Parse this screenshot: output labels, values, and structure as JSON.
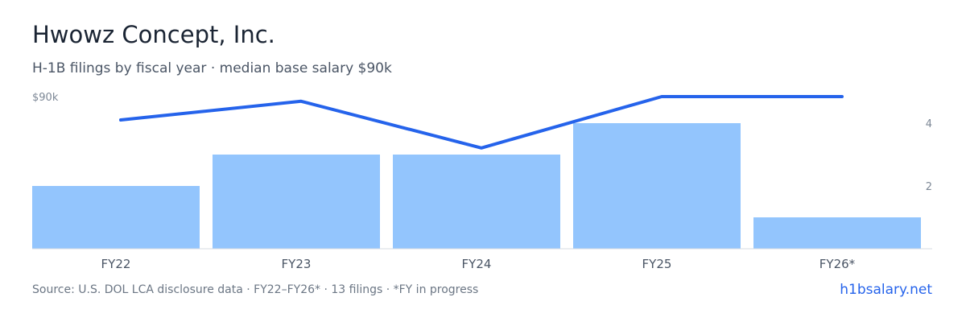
{
  "header": {
    "title": "Hwowz Concept, Inc.",
    "subtitle": "H-1B filings by fiscal year · median base salary $90k"
  },
  "footer": {
    "source": "Source: U.S. DOL LCA disclosure data · FY22–FY26* · 13 filings · *FY in progress",
    "brand": "h1bsalary.net"
  },
  "colors": {
    "bars": "#93c5fd",
    "line": "#2563eb",
    "baseline": "#d5dbe3",
    "brand": "#2563eb"
  },
  "chart_data": {
    "type": "bar",
    "categories": [
      "FY22",
      "FY23",
      "FY24",
      "FY25",
      "FY26*"
    ],
    "series": [
      {
        "type": "bar",
        "axis": "right",
        "values": [
          2,
          3,
          3,
          4,
          1
        ]
      },
      {
        "type": "line",
        "axis": "left",
        "values": [
          80,
          88,
          68,
          90,
          90
        ]
      }
    ],
    "left_axis": {
      "ticks": [
        {
          "value": 90,
          "label": "$90k"
        }
      ],
      "ylim": [
        0,
        90
      ]
    },
    "right_axis": {
      "ticks": [
        {
          "value": 2,
          "label": "2"
        },
        {
          "value": 4,
          "label": "4"
        }
      ],
      "ylim": [
        0,
        4.9
      ]
    },
    "grid": false,
    "legend": "none"
  }
}
